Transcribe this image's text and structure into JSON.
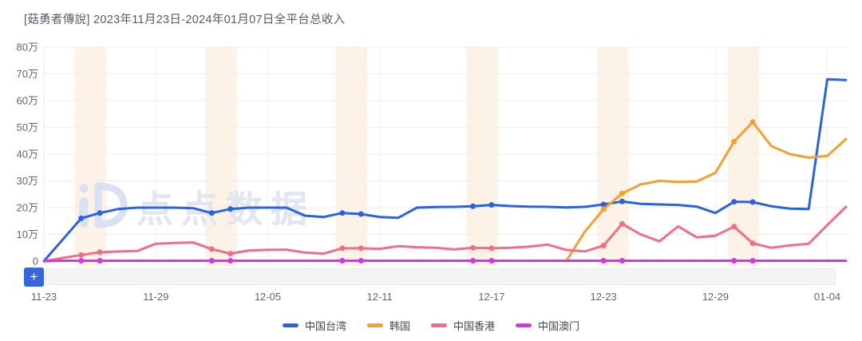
{
  "watermark": {
    "text": "点点数据",
    "logo_icon": "diandian-logo"
  },
  "controls": {
    "zoom_in_label": "+"
  },
  "chart_data": {
    "type": "line",
    "title": "[菇勇者傳說] 2023年11月23日-2024年01月07日全平台总收入",
    "unit": "万",
    "legend_position": "bottom-center",
    "grid": true,
    "y_axis": {
      "ticks": [
        "0",
        "10万",
        "20万",
        "30万",
        "40万",
        "50万",
        "60万",
        "70万",
        "80万"
      ],
      "min": 0,
      "max_wan": 80
    },
    "x_axis": {
      "labels": [
        "11-23",
        "11-29",
        "12-05",
        "12-11",
        "12-17",
        "12-23",
        "12-29",
        "01-04"
      ],
      "label_indices": [
        0,
        6,
        12,
        18,
        24,
        30,
        36,
        42
      ]
    },
    "dates": [
      "11-23",
      "11-24",
      "11-25",
      "11-26",
      "11-27",
      "11-28",
      "11-29",
      "11-30",
      "12-01",
      "12-02",
      "12-03",
      "12-04",
      "12-05",
      "12-06",
      "12-07",
      "12-08",
      "12-09",
      "12-10",
      "12-11",
      "12-12",
      "12-13",
      "12-14",
      "12-15",
      "12-16",
      "12-17",
      "12-18",
      "12-19",
      "12-20",
      "12-21",
      "12-22",
      "12-23",
      "12-24",
      "12-25",
      "12-26",
      "12-27",
      "12-28",
      "12-29",
      "12-30",
      "12-31",
      "01-01",
      "01-02",
      "01-03",
      "01-04",
      "01-05"
    ],
    "weekend_saturday_indices": [
      2,
      9,
      16,
      23,
      30,
      37
    ],
    "series": [
      {
        "id": "taiwan",
        "name": "中国台湾",
        "color": "#2b62e0",
        "values_wan": [
          0,
          8,
          16,
          18,
          19.5,
          20,
          20,
          20,
          19.8,
          18,
          19.5,
          20,
          20,
          20,
          17,
          16.5,
          18,
          17.6,
          16.5,
          16.2,
          20,
          20.2,
          20.3,
          20.5,
          21,
          20.6,
          20.4,
          20.3,
          20.1,
          20.3,
          21.2,
          22.3,
          21.4,
          21.2,
          21,
          20.4,
          18,
          22.2,
          22.1,
          20.5,
          19.6,
          19.5,
          68,
          67.7
        ]
      },
      {
        "id": "korea",
        "name": "韩国",
        "color": "#f5a02e",
        "values_wan": [
          null,
          null,
          null,
          null,
          null,
          null,
          null,
          null,
          null,
          null,
          null,
          null,
          null,
          null,
          null,
          null,
          null,
          null,
          null,
          null,
          null,
          null,
          null,
          null,
          null,
          null,
          null,
          null,
          0,
          11,
          19.4,
          25.3,
          28.7,
          30,
          29.6,
          29.8,
          33,
          44.7,
          52,
          43,
          40,
          38.7,
          39.3,
          45.6
        ]
      },
      {
        "id": "hongkong",
        "name": "中国香港",
        "color": "#f26d87",
        "values_wan": [
          0,
          1.2,
          2.3,
          3.3,
          3.6,
          3.8,
          6.5,
          6.8,
          7,
          4.5,
          2.8,
          4,
          4.2,
          4.3,
          3.2,
          2.8,
          4.8,
          4.8,
          4.6,
          5.6,
          5.2,
          5,
          4.4,
          5,
          4.8,
          5,
          5.4,
          6.2,
          4.2,
          3.6,
          5.8,
          13.9,
          10,
          7.4,
          13,
          8.9,
          9.5,
          12.9,
          6.7,
          5,
          5.9,
          6.5,
          13.5,
          20.3
        ]
      },
      {
        "id": "macau",
        "name": "中国澳门",
        "color": "#d434ea",
        "values_wan": [
          0,
          0.15,
          0.15,
          0.15,
          0.15,
          0.15,
          0.15,
          0.15,
          0.15,
          0.15,
          0.15,
          0.15,
          0.15,
          0.15,
          0.15,
          0.15,
          0.15,
          0.15,
          0.15,
          0.15,
          0.15,
          0.15,
          0.15,
          0.15,
          0.15,
          0.15,
          0.15,
          0.15,
          0.15,
          0.15,
          0.15,
          0.15,
          0.15,
          0.15,
          0.15,
          0.15,
          0.15,
          0.15,
          0.15,
          0.15,
          0.15,
          0.15,
          0.15,
          0.15
        ]
      }
    ],
    "style": {
      "weekend_band_color": "#fcf3e6",
      "grid_color": "#ededf2",
      "vertical_grid_color": "#f2f2f6",
      "axis_line_color": "#e9e9ee",
      "axis_text_color": "#61666f",
      "watermark_color": "#e2e6f0",
      "logo_color": "#d9e1f2"
    }
  }
}
